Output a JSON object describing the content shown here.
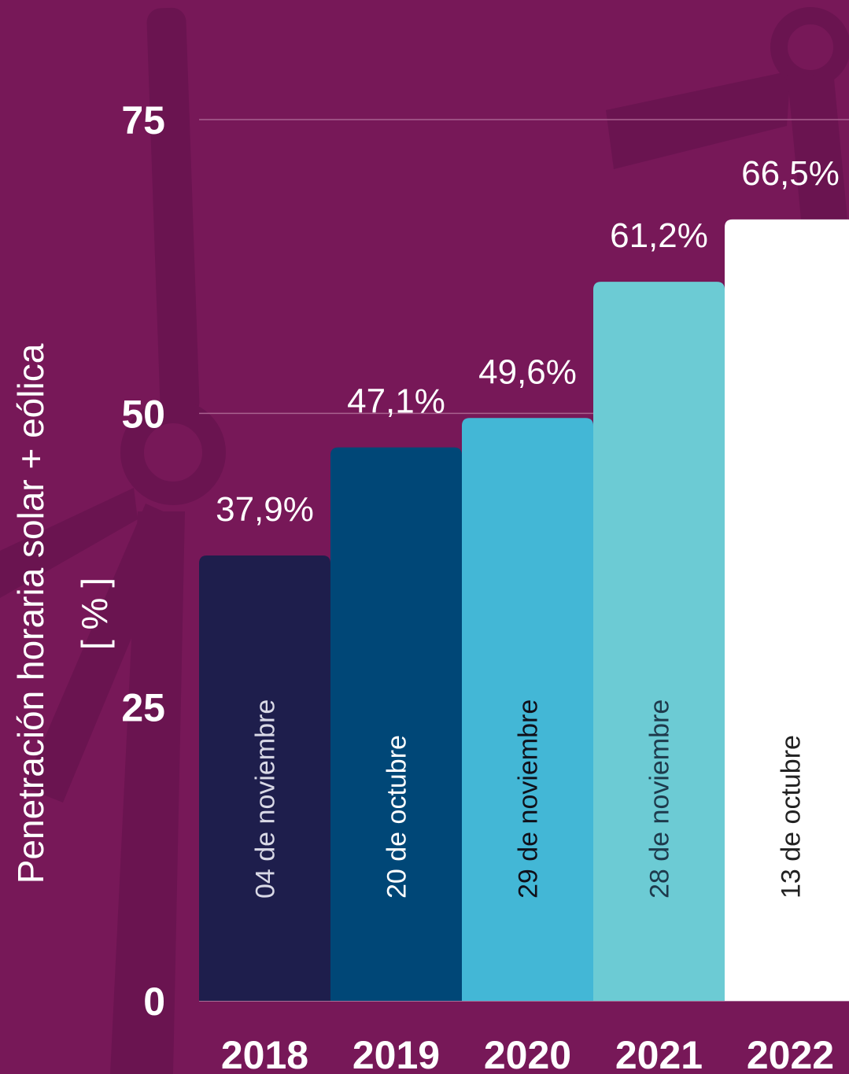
{
  "chart_data": {
    "type": "bar",
    "categories": [
      "2018",
      "2019",
      "2020",
      "2021",
      "2022"
    ],
    "values": [
      37.9,
      47.1,
      49.6,
      61.2,
      66.5
    ],
    "value_labels": [
      "37,9%",
      "47,1%",
      "49,6%",
      "61,2%",
      "66,5%"
    ],
    "bar_dates": [
      "04 de noviembre",
      "20 de octubre",
      "29 de noviembre",
      "28 de noviembre",
      "13 de octubre"
    ],
    "bar_colors": [
      "#1e1e4c",
      "#004777",
      "#43b7d6",
      "#6ccbd4",
      "#ffffff"
    ],
    "date_text_colors": [
      "#d9d9e6",
      "#ffffff",
      "#10101a",
      "#1e3a4c",
      "#222222"
    ],
    "ylabel": "Penetración horaria solar + eólica",
    "ylabel_unit": "[ % ]",
    "yticks": [
      "0",
      "25",
      "50",
      "75"
    ],
    "ytick_values": [
      0,
      25,
      50,
      75
    ],
    "ylim": [
      0,
      80
    ],
    "grid": true,
    "grid_lines_at": [
      50,
      75
    ],
    "colors": {
      "background": "#771858",
      "gridline": "#a9618f",
      "axis": "#b98aab",
      "watermark": "#6a1450"
    }
  }
}
